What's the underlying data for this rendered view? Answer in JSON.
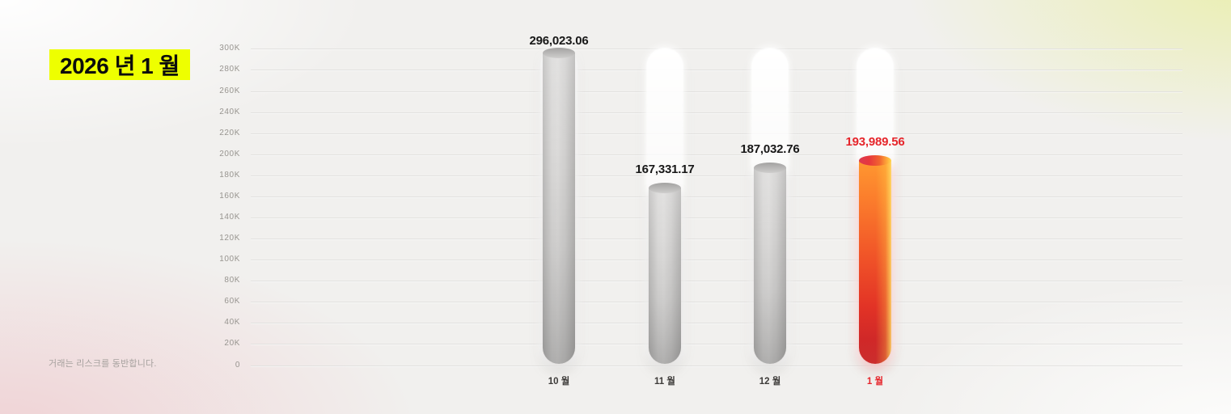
{
  "title": {
    "text": "2026 년 1 월",
    "highlight_color": "#eeff00"
  },
  "disclaimer": "거래는 리스크를 동반합니다.",
  "chart_data": {
    "type": "bar",
    "categories": [
      "10 월",
      "11 월",
      "12 월",
      "1 월"
    ],
    "values": [
      296023.06,
      167331.17,
      187032.76,
      193989.56
    ],
    "value_labels": [
      "296,023.06",
      "167,331.17",
      "187,032.76",
      "193,989.56"
    ],
    "highlight_index": 3,
    "title": "",
    "xlabel": "",
    "ylabel": "",
    "ylim": [
      0,
      300000
    ],
    "ytick_step": 20000,
    "ytick_labels": [
      "0",
      "20K",
      "40K",
      "60K",
      "80K",
      "100K",
      "120K",
      "140K",
      "160K",
      "180K",
      "200K",
      "220K",
      "240K",
      "260K",
      "280K",
      "300K"
    ],
    "grid": true,
    "legend": "none",
    "colors": {
      "bar_default": "#cfcecd",
      "bar_highlight_gradient_top": "#ff9830",
      "bar_highlight_gradient_bottom": "#cb2d2d",
      "value_label": "#181818",
      "highlight_label": "#e6252b",
      "gridline": "#e2e1df",
      "axis_tick_text": "#97948f"
    }
  }
}
